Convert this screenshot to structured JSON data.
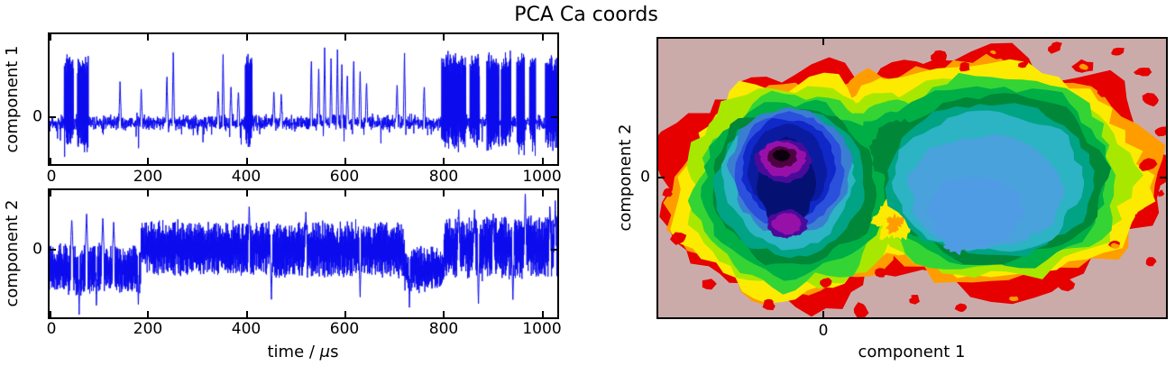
{
  "title": "PCA Ca coords",
  "palette": {
    "line": "#0b0bee",
    "axis": "#000000",
    "figure_background": "#ffffff",
    "contour_background": "#cbabaa"
  },
  "left_axes": {
    "xticks": [
      "0",
      "200",
      "400",
      "600",
      "800",
      "1000"
    ],
    "xtick_values": [
      0,
      200,
      400,
      600,
      800,
      1000
    ],
    "xmax": 1030,
    "xlabel_pre": "time / ",
    "xlabel_mu": "μ",
    "xlabel_post": "s",
    "ytick": "0"
  },
  "right_axes": {
    "xlabel": "component 1",
    "ylabel": "component 2",
    "xtick": "0",
    "ytick": "0",
    "xtick_frac": 0.325,
    "ytick_frac": 0.498
  },
  "chart_data": [
    {
      "type": "line",
      "name": "component 1 trajectory",
      "ylabel": "component 1",
      "xlabel": "time / μs",
      "x_range": [
        0,
        1030
      ],
      "y_range": [
        -0.35,
        0.62
      ],
      "ytick_value": 0,
      "grid": false,
      "seed": 7,
      "baseline": {
        "mean": -0.04,
        "noise": 0.055
      },
      "burst_level": 0.4,
      "burst_noise": 0.08,
      "burst_low": -0.1,
      "bursts": [
        [
          30,
          48
        ],
        [
          56,
          79
        ],
        [
          397,
          411
        ],
        [
          795,
          845
        ],
        [
          853,
          872
        ],
        [
          887,
          912
        ],
        [
          916,
          936
        ],
        [
          948,
          964
        ],
        [
          974,
          986
        ],
        [
          1006,
          1031
        ]
      ],
      "spikes": [
        [
          143,
          0.28
        ],
        [
          186,
          0.22
        ],
        [
          238,
          0.33
        ],
        [
          251,
          0.5
        ],
        [
          342,
          0.22
        ],
        [
          352,
          0.48
        ],
        [
          368,
          0.25
        ],
        [
          383,
          0.2
        ],
        [
          455,
          0.2
        ],
        [
          470,
          0.18
        ],
        [
          531,
          0.48
        ],
        [
          546,
          0.38
        ],
        [
          558,
          0.5
        ],
        [
          571,
          0.44
        ],
        [
          584,
          0.52
        ],
        [
          593,
          0.42
        ],
        [
          604,
          0.33
        ],
        [
          617,
          0.45
        ],
        [
          630,
          0.36
        ],
        [
          643,
          0.28
        ],
        [
          705,
          0.27
        ],
        [
          720,
          0.48
        ],
        [
          760,
          0.24
        ]
      ]
    },
    {
      "type": "line",
      "name": "component 2 trajectory",
      "ylabel": "component 2",
      "xlabel": "time / μs",
      "x_range": [
        0,
        1030
      ],
      "y_range": [
        -0.85,
        0.75
      ],
      "ytick_value": 0,
      "grid": false,
      "seed": 11,
      "segments": [
        {
          "t0": 0,
          "t1": 185,
          "mean": -0.24,
          "amp": 0.3
        },
        {
          "t0": 185,
          "t1": 450,
          "mean": 0.02,
          "amp": 0.33
        },
        {
          "t0": 450,
          "t1": 720,
          "mean": 0.0,
          "amp": 0.34
        },
        {
          "t0": 720,
          "t1": 800,
          "mean": -0.25,
          "amp": 0.26
        },
        {
          "t0": 800,
          "t1": 1031,
          "mean": 0.03,
          "amp": 0.38
        }
      ],
      "spikes_up": [
        [
          45,
          0.42
        ],
        [
          75,
          0.48
        ],
        [
          108,
          0.4
        ],
        [
          130,
          0.34
        ],
        [
          405,
          0.58
        ],
        [
          520,
          0.5
        ],
        [
          830,
          0.54
        ],
        [
          862,
          0.5
        ],
        [
          900,
          0.46
        ],
        [
          965,
          0.74
        ],
        [
          1015,
          0.58
        ],
        [
          1026,
          0.64
        ]
      ],
      "spikes_down": [
        [
          60,
          -0.8
        ],
        [
          95,
          -0.74
        ],
        [
          180,
          -0.7
        ],
        [
          450,
          -0.64
        ],
        [
          630,
          -0.6
        ],
        [
          730,
          -0.74
        ],
        [
          870,
          -0.7
        ],
        [
          940,
          -0.64
        ]
      ]
    },
    {
      "type": "density_contour",
      "name": "PCA density map",
      "xlabel": "component 1",
      "ylabel": "component 2",
      "xtick_value": 0,
      "ytick_value": 0,
      "background": "#cbabaa",
      "axis_note": "single labeled tick 0 on each axis; fractions are positions within the plot box",
      "peaks": [
        {
          "x_frac": 0.243,
          "y_frac": 0.427,
          "label": "primary density maximum (black core)"
        },
        {
          "x_frac": 0.254,
          "y_frac": 0.663,
          "label": "secondary maximum (magenta)"
        },
        {
          "x_frac": 0.63,
          "y_frac": 0.58,
          "label": "broad shallow basin (light blue)"
        }
      ],
      "satellite_color": "#e60000",
      "satellite_core_color": "#ff9d00",
      "satellites": [
        [
          0.55,
          0.06,
          0.013
        ],
        [
          0.6,
          0.1,
          0.011
        ],
        [
          0.66,
          0.05,
          0.014
        ],
        [
          0.72,
          0.09,
          0.012
        ],
        [
          0.78,
          0.03,
          0.013
        ],
        [
          0.84,
          0.1,
          0.016
        ],
        [
          0.9,
          0.05,
          0.012
        ],
        [
          0.95,
          0.12,
          0.014
        ],
        [
          0.88,
          0.18,
          0.017
        ],
        [
          0.97,
          0.22,
          0.013
        ],
        [
          0.99,
          0.33,
          0.014
        ],
        [
          0.96,
          0.45,
          0.016
        ],
        [
          0.99,
          0.55,
          0.012
        ],
        [
          0.95,
          0.64,
          0.014
        ],
        [
          0.9,
          0.74,
          0.013
        ],
        [
          0.97,
          0.8,
          0.011
        ],
        [
          0.8,
          0.88,
          0.013
        ],
        [
          0.7,
          0.93,
          0.015
        ],
        [
          0.6,
          0.97,
          0.013
        ],
        [
          0.5,
          0.93,
          0.012
        ],
        [
          0.4,
          0.97,
          0.014
        ],
        [
          0.33,
          0.88,
          0.012
        ],
        [
          0.22,
          0.95,
          0.013
        ],
        [
          0.1,
          0.88,
          0.012
        ],
        [
          0.04,
          0.72,
          0.013
        ],
        [
          0.02,
          0.55,
          0.011
        ],
        [
          0.03,
          0.35,
          0.012
        ],
        [
          0.44,
          0.84,
          0.011
        ]
      ],
      "satellite_cores": [
        [
          0.84,
          0.1,
          0.008
        ],
        [
          0.66,
          0.05,
          0.007
        ],
        [
          0.9,
          0.74,
          0.007
        ],
        [
          0.7,
          0.93,
          0.008
        ]
      ],
      "levels": [
        {
          "name": "level-red",
          "color": "#e60000",
          "blobs": [
            [
              0.27,
              0.54,
              0.265,
              0.43,
              0.11,
              1
            ],
            [
              0.655,
              0.48,
              0.345,
              0.43,
              0.11,
              2
            ],
            [
              0.46,
              0.4,
              0.2,
              0.3,
              0.12,
              3
            ]
          ]
        },
        {
          "name": "level-orange",
          "color": "#ff9d00",
          "blobs": [
            [
              0.27,
              0.54,
              0.245,
              0.405,
              0.09,
              4
            ],
            [
              0.655,
              0.48,
              0.325,
              0.405,
              0.09,
              5
            ],
            [
              0.46,
              0.4,
              0.185,
              0.27,
              0.1,
              6
            ]
          ]
        },
        {
          "name": "level-yellow",
          "color": "#fceb00",
          "blobs": [
            [
              0.27,
              0.54,
              0.225,
              0.38,
              0.085,
              7
            ],
            [
              0.655,
              0.49,
              0.3,
              0.38,
              0.085,
              8
            ],
            [
              0.46,
              0.41,
              0.17,
              0.24,
              0.09,
              9
            ]
          ]
        },
        {
          "name": "level-chartreuse",
          "color": "#a8e800",
          "blobs": [
            [
              0.27,
              0.54,
              0.21,
              0.36,
              0.08,
              10
            ],
            [
              0.655,
              0.49,
              0.28,
              0.36,
              0.08,
              11
            ],
            [
              0.46,
              0.42,
              0.155,
              0.215,
              0.08,
              12
            ]
          ]
        },
        {
          "name": "level-brightgreen",
          "color": "#35d435",
          "blobs": [
            [
              0.27,
              0.54,
              0.195,
              0.34,
              0.07,
              13
            ],
            [
              0.655,
              0.49,
              0.26,
              0.345,
              0.07,
              14
            ],
            [
              0.47,
              0.42,
              0.13,
              0.19,
              0.08,
              15
            ]
          ]
        },
        {
          "name": "level-green",
          "color": "#00ae46",
          "blobs": [
            [
              0.27,
              0.53,
              0.18,
              0.315,
              0.06,
              16
            ],
            [
              0.655,
              0.49,
              0.24,
              0.32,
              0.06,
              17
            ],
            [
              0.48,
              0.41,
              0.1,
              0.15,
              0.09,
              18
            ]
          ]
        },
        {
          "name": "level-darkgreen",
          "color": "#008737",
          "blobs": [
            [
              0.265,
              0.53,
              0.16,
              0.29,
              0.055,
              19
            ],
            [
              0.655,
              0.5,
              0.22,
              0.3,
              0.055,
              20
            ],
            [
              0.485,
              0.4,
              0.07,
              0.11,
              0.1,
              21
            ]
          ]
        },
        {
          "name": "saddle-yellow",
          "color": "#fceb00",
          "blobs": [
            [
              0.468,
              0.64,
              0.038,
              0.075,
              0.25,
              31
            ]
          ]
        },
        {
          "name": "saddle-orange",
          "color": "#ff9d00",
          "blobs": [
            [
              0.465,
              0.66,
              0.018,
              0.03,
              0.3,
              32
            ]
          ]
        },
        {
          "name": "level-tealgreen",
          "color": "#00a383",
          "blobs": [
            [
              0.26,
              0.52,
              0.145,
              0.265,
              0.05,
              22
            ],
            [
              0.655,
              0.505,
              0.205,
              0.275,
              0.05,
              23
            ]
          ]
        },
        {
          "name": "level-cyan",
          "color": "#2cb3c4",
          "blobs": [
            [
              0.258,
              0.51,
              0.128,
              0.24,
              0.05,
              24
            ],
            [
              0.652,
              0.515,
              0.185,
              0.25,
              0.05,
              25
            ]
          ]
        },
        {
          "name": "basin-sky",
          "color": "#49a2dc",
          "blobs": [
            [
              0.645,
              0.55,
              0.15,
              0.205,
              0.05,
              26
            ]
          ]
        },
        {
          "name": "basin-sky-core",
          "color": "#4f9ce4",
          "blobs": [
            [
              0.625,
              0.615,
              0.095,
              0.125,
              0.06,
              27
            ],
            [
              0.585,
              0.74,
              0.022,
              0.03,
              0.2,
              28
            ]
          ]
        },
        {
          "name": "well-steel",
          "color": "#3a7ed2",
          "blobs": [
            [
              0.26,
              0.48,
              0.118,
              0.225,
              0.05,
              33
            ]
          ]
        },
        {
          "name": "well-royal",
          "color": "#2b50dc",
          "blobs": [
            [
              0.258,
              0.47,
              0.105,
              0.2,
              0.05,
              34
            ]
          ]
        },
        {
          "name": "well-blue",
          "color": "#1028c8",
          "blobs": [
            [
              0.256,
              0.465,
              0.09,
              0.18,
              0.05,
              35
            ]
          ]
        },
        {
          "name": "well-navy",
          "color": "#0a1ba0",
          "blobs": [
            [
              0.254,
              0.47,
              0.077,
              0.155,
              0.05,
              36
            ]
          ]
        },
        {
          "name": "well-darknavy",
          "color": "#041173",
          "blobs": [
            [
              0.252,
              0.52,
              0.055,
              0.16,
              0.06,
              37
            ]
          ]
        },
        {
          "name": "well-violet",
          "color": "#4a0b9b",
          "blobs": [
            [
              0.247,
              0.437,
              0.055,
              0.075,
              0.07,
              38
            ],
            [
              0.254,
              0.663,
              0.038,
              0.05,
              0.08,
              39
            ]
          ]
        },
        {
          "name": "well-magenta",
          "color": "#9711a8",
          "blobs": [
            [
              0.245,
              0.43,
              0.046,
              0.062,
              0.07,
              40
            ],
            [
              0.254,
              0.663,
              0.028,
              0.038,
              0.08,
              41
            ]
          ]
        },
        {
          "name": "well-plum",
          "color": "#4d0242",
          "blobs": [
            [
              0.2435,
              0.424,
              0.029,
              0.038,
              0.08,
              42
            ]
          ]
        },
        {
          "name": "well-black",
          "color": "#0d000d",
          "blobs": [
            [
              0.2425,
              0.42,
              0.0165,
              0.021,
              0.1,
              43
            ]
          ]
        }
      ]
    }
  ]
}
